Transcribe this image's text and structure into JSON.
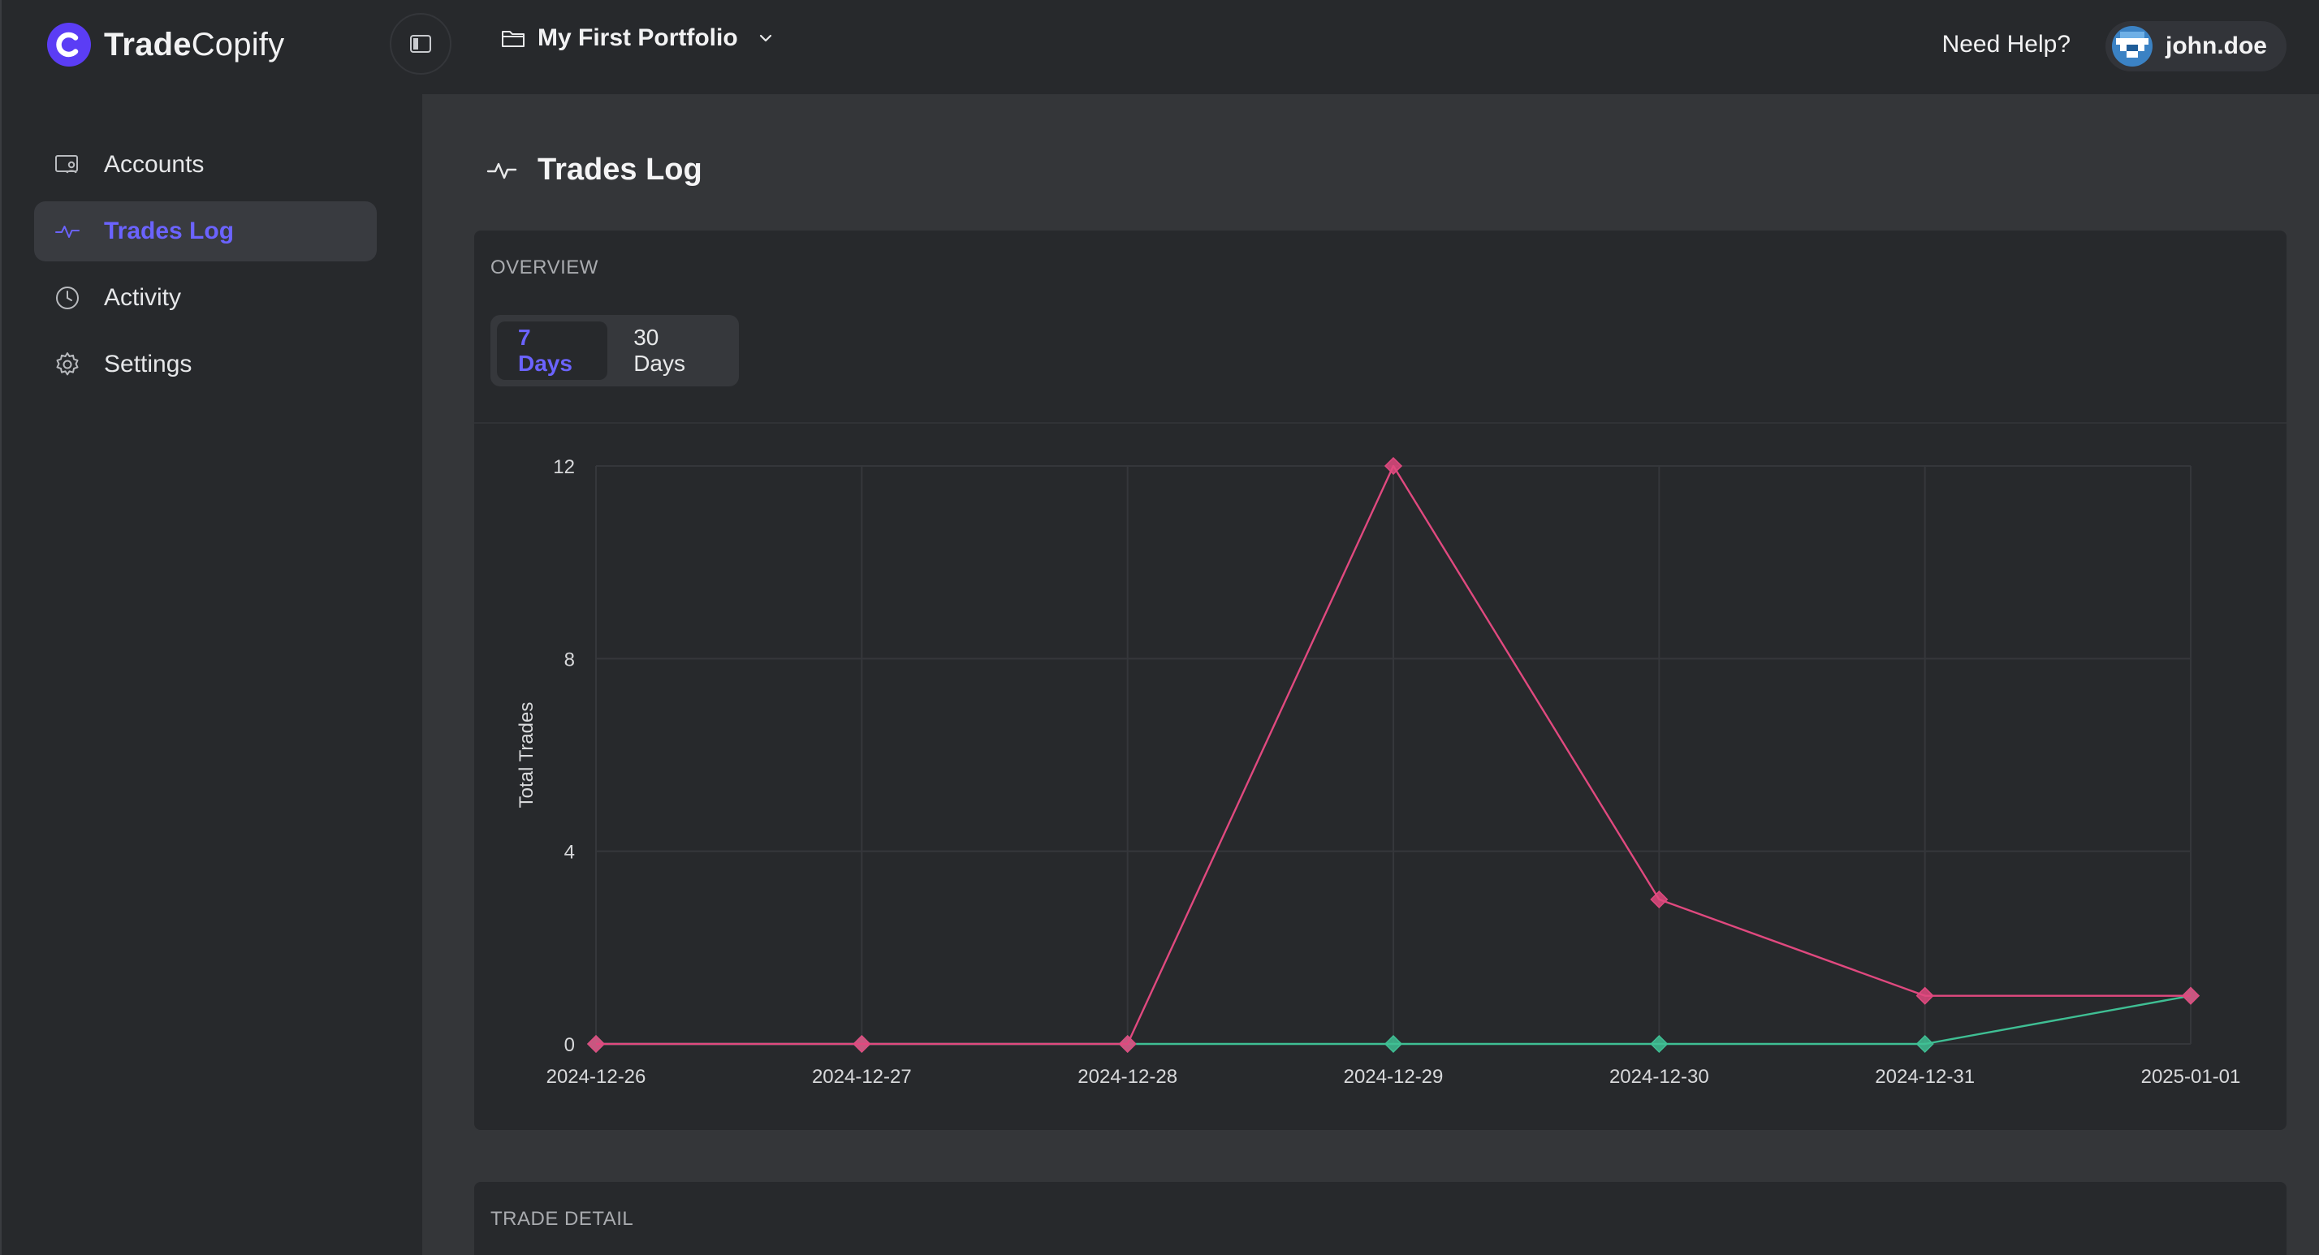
{
  "app": {
    "brand_bold": "Trade",
    "brand_light": "Copify"
  },
  "sidebar": {
    "items": [
      {
        "label": "Accounts",
        "icon": "accounts-icon",
        "active": false
      },
      {
        "label": "Trades Log",
        "icon": "pulse-icon",
        "active": true
      },
      {
        "label": "Activity",
        "icon": "clock-icon",
        "active": false
      },
      {
        "label": "Settings",
        "icon": "gear-icon",
        "active": false
      }
    ]
  },
  "topbar": {
    "portfolio": "My First Portfolio",
    "help": "Need Help?",
    "username": "john.doe"
  },
  "page": {
    "title": "Trades Log",
    "overview_label": "OVERVIEW",
    "detail_label": "TRADE DETAIL",
    "range_tabs": [
      {
        "label": "7 Days",
        "active": true
      },
      {
        "label": "30 Days",
        "active": false
      }
    ]
  },
  "colors": {
    "accent": "#6b63ff",
    "series_pink": "#e0497f",
    "series_green": "#3fbf94"
  },
  "chart_data": {
    "type": "line",
    "title": "",
    "xlabel": "",
    "ylabel": "Total Trades",
    "x": [
      "2024-12-26",
      "2024-12-27",
      "2024-12-28",
      "2024-12-29",
      "2024-12-30",
      "2024-12-31",
      "2025-01-01"
    ],
    "ylim": [
      0,
      12
    ],
    "yticks": [
      0,
      4,
      8,
      12
    ],
    "grid": true,
    "legend": "none",
    "series": [
      {
        "color": "#e0497f",
        "values": [
          0,
          0,
          0,
          12,
          3,
          1,
          1
        ]
      },
      {
        "color": "#3fbf94",
        "values": [
          0,
          0,
          0,
          0,
          0,
          0,
          1
        ]
      }
    ]
  }
}
